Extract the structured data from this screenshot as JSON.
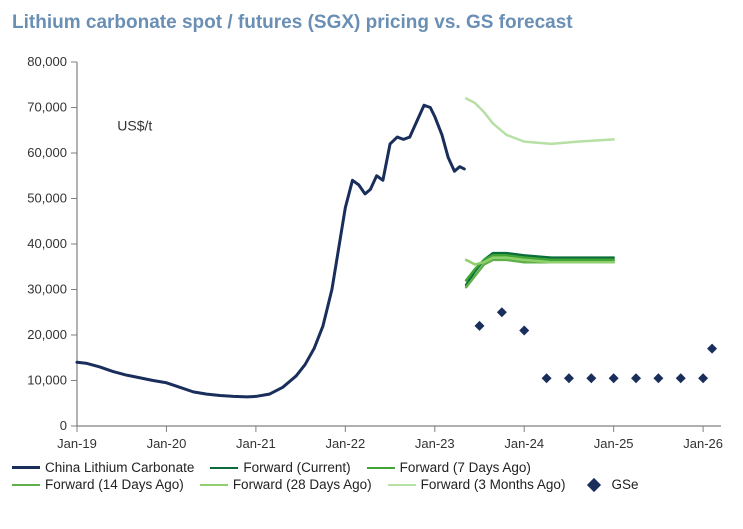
{
  "title": "Lithium carbonate spot / futures (SGX) pricing vs. GS forecast",
  "title_color": "#6a8fb5",
  "axis_unit_label": "US$/t",
  "chart": {
    "type": "line",
    "background_color": "#ffffff",
    "axis_color": "#808080",
    "tick_color": "#808080",
    "label_fontsize": 13,
    "x": {
      "min": 2019.0,
      "max": 2026.2,
      "ticks": [
        2019,
        2020,
        2021,
        2022,
        2023,
        2024,
        2025,
        2026
      ],
      "tick_labels": [
        "Jan-19",
        "Jan-20",
        "Jan-21",
        "Jan-22",
        "Jan-23",
        "Jan-24",
        "Jan-25",
        "Jan-26"
      ]
    },
    "y": {
      "min": 0,
      "max": 80000,
      "ticks": [
        0,
        10000,
        20000,
        30000,
        40000,
        50000,
        60000,
        70000,
        80000
      ],
      "tick_labels": [
        "0",
        "10,000",
        "20,000",
        "30,000",
        "40,000",
        "50,000",
        "60,000",
        "70,000",
        "80,000"
      ]
    },
    "series": [
      {
        "name": "China Lithium Carbonate",
        "type": "line",
        "color": "#1a2e5c",
        "width": 3,
        "points": [
          [
            2019.0,
            14000
          ],
          [
            2019.1,
            13800
          ],
          [
            2019.25,
            13000
          ],
          [
            2019.4,
            12000
          ],
          [
            2019.55,
            11200
          ],
          [
            2019.7,
            10600
          ],
          [
            2019.85,
            10000
          ],
          [
            2020.0,
            9500
          ],
          [
            2020.15,
            8500
          ],
          [
            2020.3,
            7500
          ],
          [
            2020.45,
            7000
          ],
          [
            2020.6,
            6700
          ],
          [
            2020.75,
            6500
          ],
          [
            2020.9,
            6400
          ],
          [
            2021.0,
            6500
          ],
          [
            2021.15,
            7000
          ],
          [
            2021.3,
            8500
          ],
          [
            2021.45,
            11000
          ],
          [
            2021.55,
            13500
          ],
          [
            2021.65,
            17000
          ],
          [
            2021.75,
            22000
          ],
          [
            2021.85,
            30000
          ],
          [
            2021.95,
            42000
          ],
          [
            2022.0,
            48000
          ],
          [
            2022.08,
            54000
          ],
          [
            2022.15,
            53000
          ],
          [
            2022.22,
            51000
          ],
          [
            2022.28,
            52000
          ],
          [
            2022.35,
            55000
          ],
          [
            2022.42,
            54000
          ],
          [
            2022.5,
            62000
          ],
          [
            2022.58,
            63500
          ],
          [
            2022.65,
            63000
          ],
          [
            2022.72,
            63500
          ],
          [
            2022.8,
            67000
          ],
          [
            2022.88,
            70500
          ],
          [
            2022.95,
            70000
          ],
          [
            2023.0,
            68000
          ],
          [
            2023.08,
            64000
          ],
          [
            2023.15,
            59000
          ],
          [
            2023.22,
            56000
          ],
          [
            2023.28,
            57000
          ],
          [
            2023.33,
            56500
          ]
        ]
      },
      {
        "name": "Forward (Current)",
        "type": "line",
        "color": "#0b6e3a",
        "width": 2.5,
        "points": [
          [
            2023.35,
            31000
          ],
          [
            2023.45,
            34000
          ],
          [
            2023.55,
            36500
          ],
          [
            2023.65,
            38000
          ],
          [
            2023.8,
            38000
          ],
          [
            2024.0,
            37500
          ],
          [
            2024.3,
            37000
          ],
          [
            2024.6,
            37000
          ],
          [
            2025.0,
            37000
          ]
        ]
      },
      {
        "name": "Forward (7 Days Ago)",
        "type": "line",
        "color": "#3fa535",
        "width": 2.5,
        "points": [
          [
            2023.35,
            32000
          ],
          [
            2023.45,
            34500
          ],
          [
            2023.55,
            36500
          ],
          [
            2023.65,
            37500
          ],
          [
            2023.8,
            37500
          ],
          [
            2024.0,
            37000
          ],
          [
            2024.3,
            36500
          ],
          [
            2024.6,
            36500
          ],
          [
            2025.0,
            36500
          ]
        ]
      },
      {
        "name": "Forward (14 Days Ago)",
        "type": "line",
        "color": "#5fb048",
        "width": 2.5,
        "points": [
          [
            2023.35,
            30500
          ],
          [
            2023.45,
            33000
          ],
          [
            2023.55,
            35500
          ],
          [
            2023.65,
            36500
          ],
          [
            2023.8,
            36500
          ],
          [
            2024.0,
            36000
          ],
          [
            2024.3,
            36000
          ],
          [
            2024.6,
            36000
          ],
          [
            2025.0,
            36000
          ]
        ]
      },
      {
        "name": "Forward (28 Days Ago)",
        "type": "line",
        "color": "#8fcf6e",
        "width": 2.5,
        "points": [
          [
            2023.35,
            36500
          ],
          [
            2023.45,
            35500
          ],
          [
            2023.55,
            36000
          ],
          [
            2023.65,
            37000
          ],
          [
            2023.8,
            37000
          ],
          [
            2024.0,
            36500
          ],
          [
            2024.3,
            36000
          ],
          [
            2024.6,
            36000
          ],
          [
            2025.0,
            36000
          ]
        ]
      },
      {
        "name": "Forward (3 Months Ago)",
        "type": "line",
        "color": "#b7e0a5",
        "width": 2.5,
        "points": [
          [
            2023.35,
            72000
          ],
          [
            2023.45,
            71000
          ],
          [
            2023.55,
            69000
          ],
          [
            2023.65,
            66500
          ],
          [
            2023.8,
            64000
          ],
          [
            2024.0,
            62500
          ],
          [
            2024.3,
            62000
          ],
          [
            2024.6,
            62500
          ],
          [
            2025.0,
            63000
          ]
        ]
      },
      {
        "name": "GSe",
        "type": "scatter",
        "marker": "diamond",
        "color": "#1a2e5c",
        "size": 8,
        "points": [
          [
            2023.5,
            22000
          ],
          [
            2023.75,
            25000
          ],
          [
            2024.0,
            21000
          ],
          [
            2024.25,
            10500
          ],
          [
            2024.5,
            10500
          ],
          [
            2024.75,
            10500
          ],
          [
            2025.0,
            10500
          ],
          [
            2025.25,
            10500
          ],
          [
            2025.5,
            10500
          ],
          [
            2025.75,
            10500
          ],
          [
            2026.0,
            10500
          ],
          [
            2026.1,
            17000
          ]
        ]
      }
    ]
  },
  "legend": [
    {
      "label": "China Lithium Carbonate",
      "color": "#1a2e5c",
      "width": 3,
      "type": "line"
    },
    {
      "label": "Forward (Current)",
      "color": "#0b6e3a",
      "width": 2.5,
      "type": "line"
    },
    {
      "label": "Forward (7 Days Ago)",
      "color": "#3fa535",
      "width": 2.5,
      "type": "line"
    },
    {
      "label": "Forward (14 Days Ago)",
      "color": "#5fb048",
      "width": 2.5,
      "type": "line"
    },
    {
      "label": "Forward (28 Days Ago)",
      "color": "#8fcf6e",
      "width": 2.5,
      "type": "line"
    },
    {
      "label": "Forward (3 Months Ago)",
      "color": "#b7e0a5",
      "width": 2.5,
      "type": "line"
    },
    {
      "label": "GSe",
      "color": "#1a2e5c",
      "type": "diamond"
    }
  ]
}
